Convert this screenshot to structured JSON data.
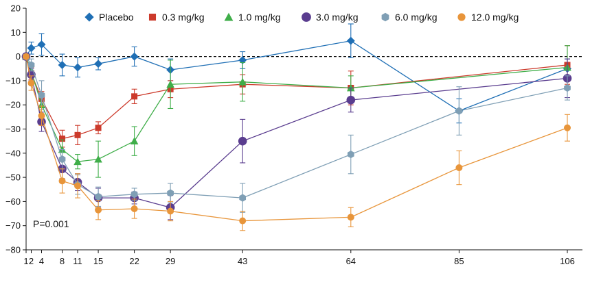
{
  "chart_data": {
    "type": "line",
    "title": "",
    "xlabel": "",
    "ylabel": "",
    "x_ticks": [
      1,
      2,
      4,
      8,
      11,
      15,
      22,
      29,
      43,
      64,
      85,
      106
    ],
    "y_ticks": [
      20,
      10,
      0,
      -10,
      -20,
      -30,
      -40,
      -50,
      -60,
      -70,
      -80
    ],
    "xlim": [
      0,
      110
    ],
    "ylim": [
      -80,
      20
    ],
    "reference_line": {
      "y": 0,
      "style": "dashed"
    },
    "legend_position": "top",
    "annotation": "P=0.001",
    "grid": false,
    "series": [
      {
        "name": "Placebo",
        "marker": "diamond",
        "color": "#1f6fb5",
        "x": [
          1,
          2,
          4,
          8,
          11,
          15,
          22,
          29,
          43,
          64,
          85,
          106
        ],
        "y": [
          0,
          3.5,
          5,
          -3.5,
          -4.5,
          -3,
          0,
          -5.5,
          -1.5,
          6.5,
          -22.5,
          -5
        ],
        "err": [
          0,
          2.5,
          4.5,
          4.5,
          4,
          2.5,
          4,
          4.5,
          3.5,
          7,
          5,
          4
        ]
      },
      {
        "name": "0.3 mg/kg",
        "marker": "square",
        "color": "#cc3a2b",
        "x": [
          1,
          2,
          4,
          8,
          11,
          15,
          22,
          29,
          43,
          64,
          106
        ],
        "y": [
          0,
          -7,
          -17.5,
          -34,
          -32.5,
          -29.5,
          -16.5,
          -13.5,
          -11.5,
          -13,
          -3.5
        ],
        "err": [
          0,
          2.5,
          3,
          3.5,
          4,
          2.5,
          3,
          3.5,
          4,
          7,
          8
        ]
      },
      {
        "name": "1.0 mg/kg",
        "marker": "triangle",
        "color": "#3fae49",
        "x": [
          1,
          2,
          4,
          8,
          11,
          15,
          22,
          29,
          43,
          64,
          106
        ],
        "y": [
          0,
          -6,
          -20,
          -38.5,
          -43.5,
          -42.5,
          -35,
          -11.5,
          -10.5,
          -13,
          -4.5
        ],
        "err": [
          0,
          2.5,
          4,
          4,
          3,
          7.5,
          6,
          10,
          8,
          5,
          9
        ]
      },
      {
        "name": "3.0 mg/kg",
        "marker": "circle",
        "color": "#5a3d8f",
        "x": [
          1,
          2,
          4,
          8,
          11,
          15,
          22,
          29,
          43,
          64,
          106
        ],
        "y": [
          0,
          -7.5,
          -27,
          -46.5,
          -52,
          -58.5,
          -58.5,
          -62.5,
          -35,
          -18,
          -9
        ],
        "err": [
          0,
          2.5,
          4,
          4,
          3.5,
          4,
          2.5,
          5,
          9,
          5,
          8
        ]
      },
      {
        "name": "6.0 mg/kg",
        "marker": "hexagon",
        "color": "#7f9fb5",
        "x": [
          1,
          2,
          4,
          8,
          11,
          15,
          22,
          29,
          43,
          64,
          85,
          106
        ],
        "y": [
          0,
          -3.5,
          -16,
          -42.5,
          -53,
          -58,
          -57,
          -56.5,
          -58.5,
          -40.5,
          -22.5,
          -13
        ],
        "err": [
          0,
          2.5,
          6,
          4,
          4,
          4,
          2.5,
          4,
          6,
          8,
          10,
          5
        ]
      },
      {
        "name": "12.0 mg/kg",
        "marker": "circle",
        "color": "#e8953a",
        "x": [
          1,
          2,
          4,
          8,
          11,
          15,
          22,
          29,
          43,
          64,
          85,
          106
        ],
        "y": [
          0,
          -11,
          -24.5,
          -51.5,
          -53.5,
          -63.5,
          -63,
          -64,
          -68,
          -66.5,
          -46,
          -29.5
        ],
        "err": [
          0,
          3,
          4,
          5,
          5,
          4,
          4,
          4,
          4,
          4,
          7,
          5.5
        ]
      }
    ]
  }
}
